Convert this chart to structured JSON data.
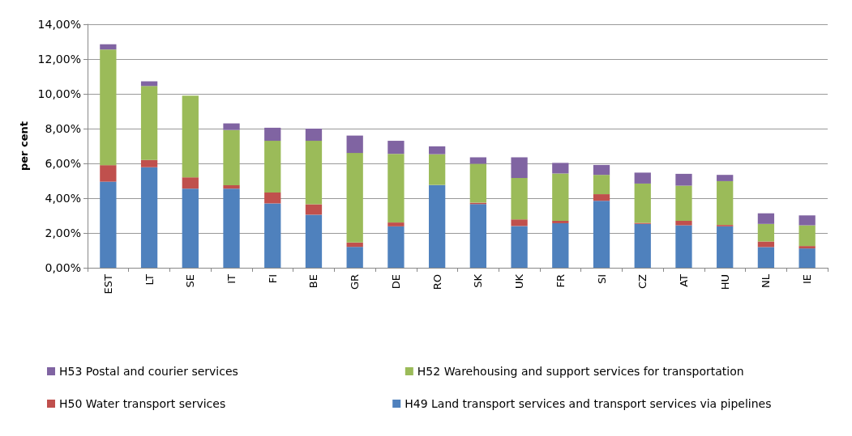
{
  "chart_data": {
    "type": "bar",
    "stacked": true,
    "ylabel": "per cent",
    "categories": [
      "EST",
      "LT",
      "SE",
      "IT",
      "FI",
      "BE",
      "GR",
      "DE",
      "RO",
      "SK",
      "UK",
      "FR",
      "SI",
      "CZ",
      "AT",
      "HU",
      "NL",
      "IE"
    ],
    "series": [
      {
        "name": "H49 Land transport services and transport services via pipelines",
        "color": "#4f81bd",
        "values": [
          4.95,
          5.78,
          4.55,
          4.55,
          3.7,
          3.05,
          1.2,
          2.38,
          4.76,
          3.66,
          2.4,
          2.56,
          3.85,
          2.52,
          2.44,
          2.38,
          1.19,
          1.11
        ]
      },
      {
        "name": "H50 Water transport services",
        "color": "#c0504d",
        "values": [
          0.95,
          0.42,
          0.65,
          0.2,
          0.63,
          0.6,
          0.25,
          0.22,
          0,
          0.08,
          0.38,
          0.14,
          0.38,
          0.06,
          0.26,
          0.08,
          0.32,
          0.14
        ]
      },
      {
        "name": "H52 Warehousing and support services for transportation",
        "color": "#9bbb59",
        "values": [
          6.65,
          4.25,
          4.7,
          3.17,
          2.97,
          3.65,
          5.15,
          3.95,
          1.77,
          2.24,
          2.38,
          2.72,
          1.11,
          2.26,
          2.02,
          2.52,
          1.01,
          1.19
        ]
      },
      {
        "name": "H53 Postal and courier services",
        "color": "#8064a2",
        "values": [
          0.3,
          0.27,
          0,
          0.38,
          0.75,
          0.7,
          1.0,
          0.75,
          0.45,
          0.37,
          1.19,
          0.61,
          0.57,
          0.63,
          0.68,
          0.36,
          0.61,
          0.57
        ]
      }
    ],
    "ylim": [
      0,
      14
    ],
    "yticks": [
      {
        "value": 0,
        "label": "0,00%"
      },
      {
        "value": 2,
        "label": "2,00%"
      },
      {
        "value": 4,
        "label": "4,00%"
      },
      {
        "value": 6,
        "label": "6,00%"
      },
      {
        "value": 8,
        "label": "8,00%"
      },
      {
        "value": 10,
        "label": "10,00%"
      },
      {
        "value": 12,
        "label": "12,00%"
      },
      {
        "value": 14,
        "label": "14,00%"
      }
    ],
    "grid": "y",
    "legend": "bottom"
  }
}
